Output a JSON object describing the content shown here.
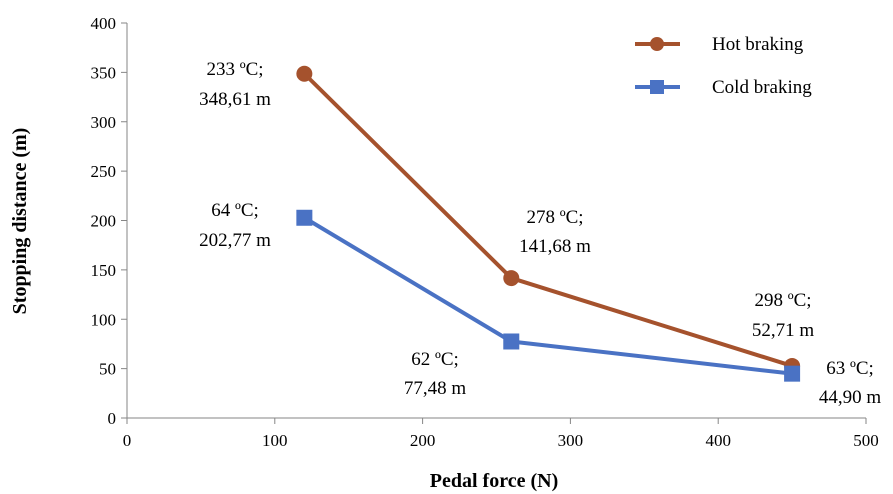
{
  "chart_data": {
    "type": "line",
    "title": "",
    "xlabel": "Pedal force (N)",
    "ylabel": "Stopping distance (m)",
    "xlim": [
      0,
      500
    ],
    "ylim": [
      0,
      400
    ],
    "xticks": [
      "0",
      "100",
      "200",
      "300",
      "400",
      "500"
    ],
    "yticks": [
      "0",
      "50",
      "100",
      "150",
      "200",
      "250",
      "300",
      "350",
      "400"
    ],
    "grid": false,
    "legend_position": "top-right",
    "series": [
      {
        "name": "Hot braking",
        "color": "#A5522D",
        "marker": "circle",
        "x": [
          120,
          260,
          450
        ],
        "y": [
          348.61,
          141.68,
          52.71
        ],
        "labels": [
          [
            "233 ºC;",
            "348,61 m"
          ],
          [
            "278 ºC;",
            "141,68 m"
          ],
          [
            "298 ºC;",
            "52,71 m"
          ]
        ]
      },
      {
        "name": "Cold braking",
        "color": "#4A72C4",
        "marker": "square",
        "x": [
          120,
          260,
          450
        ],
        "y": [
          202.77,
          77.48,
          44.9
        ],
        "labels": [
          [
            "64 ºC;",
            "202,77 m"
          ],
          [
            "62 ºC;",
            "77,48 m"
          ],
          [
            "63 ºC;",
            "44,90 m"
          ]
        ]
      }
    ]
  }
}
